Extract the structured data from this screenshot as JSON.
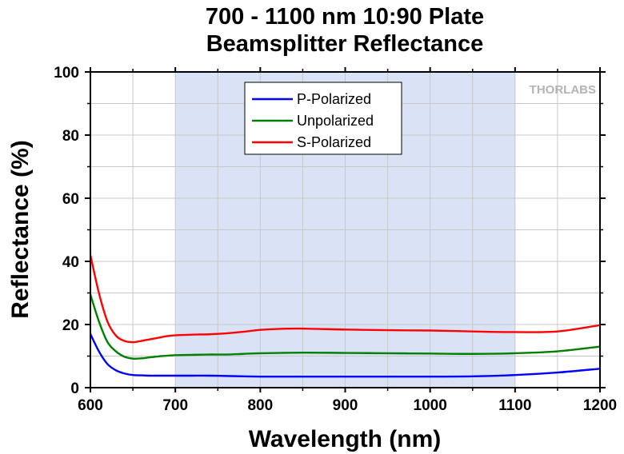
{
  "chart_data": {
    "type": "line",
    "title_lines": [
      "700 - 1100 nm 10:90 Plate",
      "Beamsplitter Reflectance"
    ],
    "xlabel": "Wavelength (nm)",
    "ylabel": "Reflectance (%)",
    "xlim": [
      600,
      1200
    ],
    "ylim": [
      0,
      100
    ],
    "x_ticks": [
      600,
      700,
      800,
      900,
      1000,
      1100,
      1200
    ],
    "y_ticks": [
      0,
      20,
      40,
      60,
      80,
      100
    ],
    "grid": true,
    "highlight_band": [
      700,
      1100
    ],
    "highlight_color": "#d9e3f5",
    "legend_position": "top-center",
    "logo_text": "THORLABS",
    "series": [
      {
        "name": "P-Polarized",
        "color": "#0000ff",
        "x": [
          600,
          610,
          620,
          630,
          640,
          650,
          660,
          670,
          680,
          690,
          700,
          720,
          740,
          760,
          780,
          800,
          850,
          900,
          950,
          1000,
          1050,
          1100,
          1150,
          1200
        ],
        "y": [
          17,
          11.5,
          7.5,
          5.5,
          4.5,
          4.0,
          3.9,
          3.8,
          3.8,
          3.8,
          3.8,
          3.8,
          3.8,
          3.7,
          3.6,
          3.5,
          3.5,
          3.5,
          3.5,
          3.5,
          3.6,
          4.0,
          4.8,
          6.0
        ]
      },
      {
        "name": "Unpolarized",
        "color": "#008000",
        "x": [
          600,
          610,
          620,
          630,
          640,
          650,
          660,
          670,
          680,
          690,
          700,
          720,
          740,
          760,
          780,
          800,
          850,
          900,
          950,
          1000,
          1050,
          1100,
          1150,
          1200
        ],
        "y": [
          29.5,
          21,
          14.5,
          11.5,
          9.8,
          9.2,
          9.3,
          9.6,
          9.9,
          10.1,
          10.3,
          10.4,
          10.5,
          10.5,
          10.7,
          10.9,
          11.1,
          11.0,
          10.9,
          10.8,
          10.7,
          10.9,
          11.5,
          13.0
        ]
      },
      {
        "name": "S-Polarized",
        "color": "#ff0000",
        "x": [
          600,
          610,
          620,
          630,
          640,
          650,
          660,
          670,
          680,
          690,
          700,
          720,
          740,
          760,
          780,
          800,
          820,
          850,
          900,
          950,
          1000,
          1050,
          1100,
          1150,
          1200
        ],
        "y": [
          42,
          30,
          21,
          16.5,
          14.8,
          14.4,
          14.8,
          15.3,
          15.8,
          16.3,
          16.6,
          16.8,
          16.9,
          17.2,
          17.7,
          18.3,
          18.6,
          18.7,
          18.4,
          18.2,
          18.1,
          17.8,
          17.6,
          17.8,
          19.8
        ]
      }
    ]
  }
}
